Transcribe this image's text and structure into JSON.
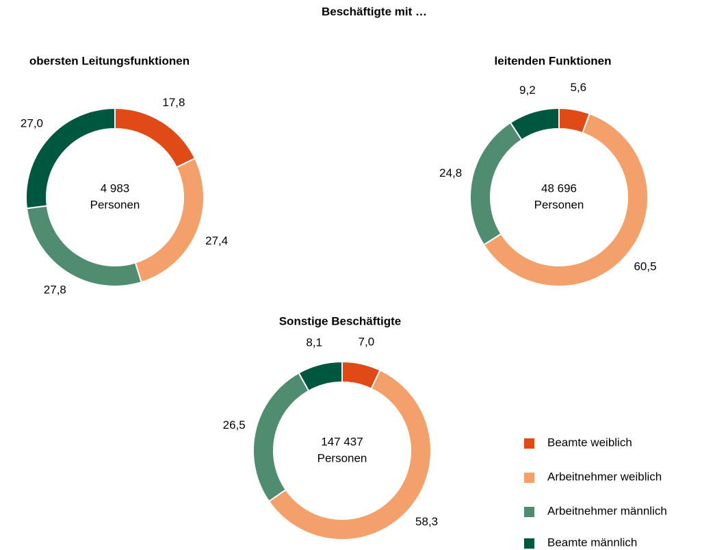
{
  "title": "Beschäftigte mit …",
  "chart_data": [
    {
      "type": "donut",
      "title": "obersten Leitungsfunktionen",
      "categories": [
        "Beamte weiblich",
        "Arbeitnehmer weiblich",
        "Arbeitnehmer männlich",
        "Beamte männlich"
      ],
      "colors": [
        "#e04a17",
        "#f4a06a",
        "#4f8c70",
        "#00573f"
      ],
      "values": [
        17.8,
        27.4,
        27.8,
        27.0
      ],
      "value_labels": [
        "17,8",
        "27,4",
        "27,8",
        "27,0"
      ],
      "total": {
        "value": 4983,
        "label": "4 983"
      },
      "unit": "Personen"
    },
    {
      "type": "donut",
      "title": "leitenden Funktionen",
      "categories": [
        "Beamte weiblich",
        "Arbeitnehmer weiblich",
        "Arbeitnehmer männlich",
        "Beamte männlich"
      ],
      "colors": [
        "#e04a17",
        "#f4a06a",
        "#4f8c70",
        "#00573f"
      ],
      "values": [
        5.6,
        60.5,
        24.8,
        9.2
      ],
      "value_labels": [
        "5,6",
        "60,5",
        "24,8",
        "9,2"
      ],
      "total": {
        "value": 48696,
        "label": "48 696"
      },
      "unit": "Personen"
    },
    {
      "type": "donut",
      "title": "Sonstige Beschäftigte",
      "categories": [
        "Beamte weiblich",
        "Arbeitnehmer weiblich",
        "Arbeitnehmer männlich",
        "Beamte männlich"
      ],
      "colors": [
        "#e04a17",
        "#f4a06a",
        "#4f8c70",
        "#00573f"
      ],
      "values": [
        7.0,
        58.3,
        26.5,
        8.1
      ],
      "value_labels": [
        "7,0",
        "58,3",
        "26,5",
        "8,1"
      ],
      "total": {
        "value": 147437,
        "label": "147 437"
      },
      "unit": "Personen"
    }
  ]
}
